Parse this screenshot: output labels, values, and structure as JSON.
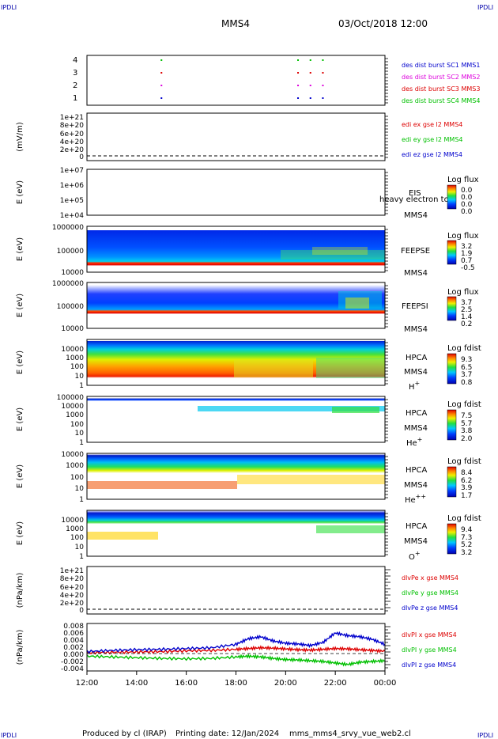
{
  "corner_label": "IPDLI",
  "header": {
    "mission": "MMS4",
    "datetime": "03/Oct/2018 12:00"
  },
  "footer": {
    "produced": "Produced by cl (IRAP)",
    "printing": "Printing date: 12/Jan/2024",
    "file": "mms_mms4_srvy_vue_web2.cl"
  },
  "time_axis": {
    "ticks": [
      "12:00",
      "14:00",
      "16:00",
      "18:00",
      "20:00",
      "22:00",
      "00:00"
    ]
  },
  "colors": {
    "red": "#dd0000",
    "green": "#00c000",
    "blue": "#0000cc",
    "magenta": "#dd00dd"
  },
  "chart_data": [
    {
      "type": "scatter",
      "panel": "burst",
      "yticks": [
        "4",
        "3",
        "2",
        "1"
      ],
      "legend": [
        {
          "label": "des dist burst SC1 MMS1",
          "color": "#0000cc"
        },
        {
          "label": "des dist burst SC2 MMS2",
          "color": "#dd00dd"
        },
        {
          "label": "des dist burst SC3 MMS3",
          "color": "#dd0000"
        },
        {
          "label": "des dist burst SC4 MMS4",
          "color": "#00c000"
        }
      ],
      "series": [
        {
          "name": "des dist burst SC4 MMS4",
          "y": 4,
          "x": [
            "15:00",
            "20:30",
            "21:00",
            "21:30"
          ]
        },
        {
          "name": "des dist burst SC3 MMS3",
          "y": 3,
          "x": [
            "15:00",
            "20:30",
            "21:00",
            "21:30"
          ]
        },
        {
          "name": "des dist burst SC2 MMS2",
          "y": 2,
          "x": [
            "15:00",
            "20:30",
            "21:00",
            "21:30"
          ]
        },
        {
          "name": "des dist burst SC1 MMS1",
          "y": 1,
          "x": [
            "15:00",
            "20:30",
            "21:00",
            "21:30"
          ]
        }
      ]
    },
    {
      "type": "line",
      "panel": "edi",
      "ylabel": "(mV/m)",
      "yticks": [
        "1e+21",
        "8e+20",
        "6e+20",
        "4e+20",
        "2e+20",
        "0"
      ],
      "legend": [
        {
          "label": "edi ex gse l2 MMS4",
          "color": "#dd0000"
        },
        {
          "label": "edi ey gse l2 MMS4",
          "color": "#00c000"
        },
        {
          "label": "edi ez gse l2 MMS4",
          "color": "#0000cc"
        }
      ]
    },
    {
      "type": "heatmap",
      "panel": "eis",
      "ylabel": "E (eV)",
      "yticks": [
        "1e+07",
        "1e+06",
        "1e+05",
        "1e+04"
      ],
      "inst": [
        "EIS",
        "MMS4"
      ],
      "overlay_text": "heavy electron to",
      "colorbar": {
        "title": "Log flux",
        "ticks": [
          "0.0",
          "0.0",
          "0.0",
          "0.0"
        ]
      }
    },
    {
      "type": "heatmap",
      "panel": "feepse",
      "ylabel": "E (eV)",
      "yticks": [
        "1000000",
        "100000",
        "10000"
      ],
      "inst": [
        "FEEPSE",
        "MMS4"
      ],
      "colorbar": {
        "title": "Log flux",
        "ticks": [
          "3.2",
          "1.9",
          "0.7",
          "-0.5"
        ]
      }
    },
    {
      "type": "heatmap",
      "panel": "feepsi",
      "ylabel": "E (eV)",
      "yticks": [
        "1000000",
        "100000",
        "10000"
      ],
      "inst": [
        "FEEPSI",
        "MMS4"
      ],
      "colorbar": {
        "title": "Log flux",
        "ticks": [
          "3.7",
          "2.5",
          "1.4",
          "0.2"
        ]
      }
    },
    {
      "type": "heatmap",
      "panel": "hpca_h",
      "ylabel": "E (eV)",
      "yticks": [
        "10000",
        "1000",
        "100",
        "10",
        "1"
      ],
      "inst": [
        "HPCA",
        "MMS4"
      ],
      "species": "H",
      "charge": "+",
      "colorbar": {
        "title": "Log fdist",
        "ticks": [
          "9.3",
          "6.5",
          "3.7",
          "0.8"
        ]
      }
    },
    {
      "type": "heatmap",
      "panel": "hpca_he",
      "ylabel": "E (eV)",
      "yticks": [
        "100000",
        "10000",
        "1000",
        "100",
        "10",
        "1"
      ],
      "inst": [
        "HPCA",
        "MMS4"
      ],
      "species": "He",
      "charge": "+",
      "colorbar": {
        "title": "Log fdist",
        "ticks": [
          "7.5",
          "5.7",
          "3.8",
          "2.0"
        ]
      }
    },
    {
      "type": "heatmap",
      "panel": "hpca_hepp",
      "ylabel": "E (eV)",
      "yticks": [
        "10000",
        "1000",
        "100",
        "10",
        "1"
      ],
      "inst": [
        "HPCA",
        "MMS4"
      ],
      "species": "He",
      "charge": "++",
      "colorbar": {
        "title": "Log fdist",
        "ticks": [
          "8.4",
          "6.2",
          "3.9",
          "1.7"
        ]
      }
    },
    {
      "type": "heatmap",
      "panel": "hpca_o",
      "ylabel": "E (eV)",
      "yticks": [
        "10000",
        "1000",
        "100",
        "10",
        "1"
      ],
      "inst": [
        "HPCA",
        "MMS4"
      ],
      "species": "O",
      "charge": "+",
      "colorbar": {
        "title": "Log fdist",
        "ticks": [
          "9.4",
          "7.3",
          "5.2",
          "3.2"
        ]
      }
    },
    {
      "type": "line",
      "panel": "divpe",
      "ylabel": "(nPa/km)",
      "yticks": [
        "1e+21",
        "8e+20",
        "6e+20",
        "4e+20",
        "2e+20",
        "0"
      ],
      "legend": [
        {
          "label": "dlvPe x gse MMS4",
          "color": "#dd0000"
        },
        {
          "label": "dlvPe y gse MMS4",
          "color": "#00c000"
        },
        {
          "label": "dlvPe z gse MMS4",
          "color": "#0000cc"
        }
      ]
    },
    {
      "type": "line",
      "panel": "divpi",
      "ylabel": "(nPa/km)",
      "yticks": [
        "0.008",
        "0.006",
        "0.004",
        "0.002",
        "0.000",
        "-0.002",
        "-0.004"
      ],
      "ylim": [
        -0.0045,
        0.008
      ],
      "legend": [
        {
          "label": "dlvPI x gse MMS4",
          "color": "#dd0000"
        },
        {
          "label": "dlvPI y gse MMS4",
          "color": "#00c000"
        },
        {
          "label": "dlvPI z gse MMS4",
          "color": "#0000cc"
        }
      ],
      "x_hours": [
        0,
        1,
        2,
        3,
        4,
        5,
        6,
        6.5,
        7,
        7.5,
        8,
        8.5,
        9,
        9.5,
        10,
        10.5,
        11,
        11.5,
        12
      ],
      "series": [
        {
          "name": "dlvPI x gse MMS4",
          "values": [
            0.0003,
            0.0004,
            0.0005,
            0.0006,
            0.0008,
            0.0009,
            0.0012,
            0.0014,
            0.0016,
            0.0015,
            0.0013,
            0.0011,
            0.001,
            0.0012,
            0.0014,
            0.0013,
            0.0011,
            0.0009,
            0.0007
          ]
        },
        {
          "name": "dlvPI y gse MMS4",
          "values": [
            -0.0006,
            -0.0008,
            -0.001,
            -0.0012,
            -0.0013,
            -0.0012,
            -0.0008,
            -0.0006,
            -0.0008,
            -0.0012,
            -0.0015,
            -0.0016,
            -0.0018,
            -0.002,
            -0.0024,
            -0.0028,
            -0.0022,
            -0.002,
            -0.0018
          ]
        },
        {
          "name": "dlvPI z gse MMS4",
          "values": [
            0.0006,
            0.0009,
            0.0011,
            0.0012,
            0.0014,
            0.0016,
            0.0025,
            0.004,
            0.0045,
            0.0034,
            0.0028,
            0.0026,
            0.0022,
            0.003,
            0.0055,
            0.0048,
            0.0045,
            0.0038,
            0.0025
          ]
        }
      ]
    }
  ]
}
